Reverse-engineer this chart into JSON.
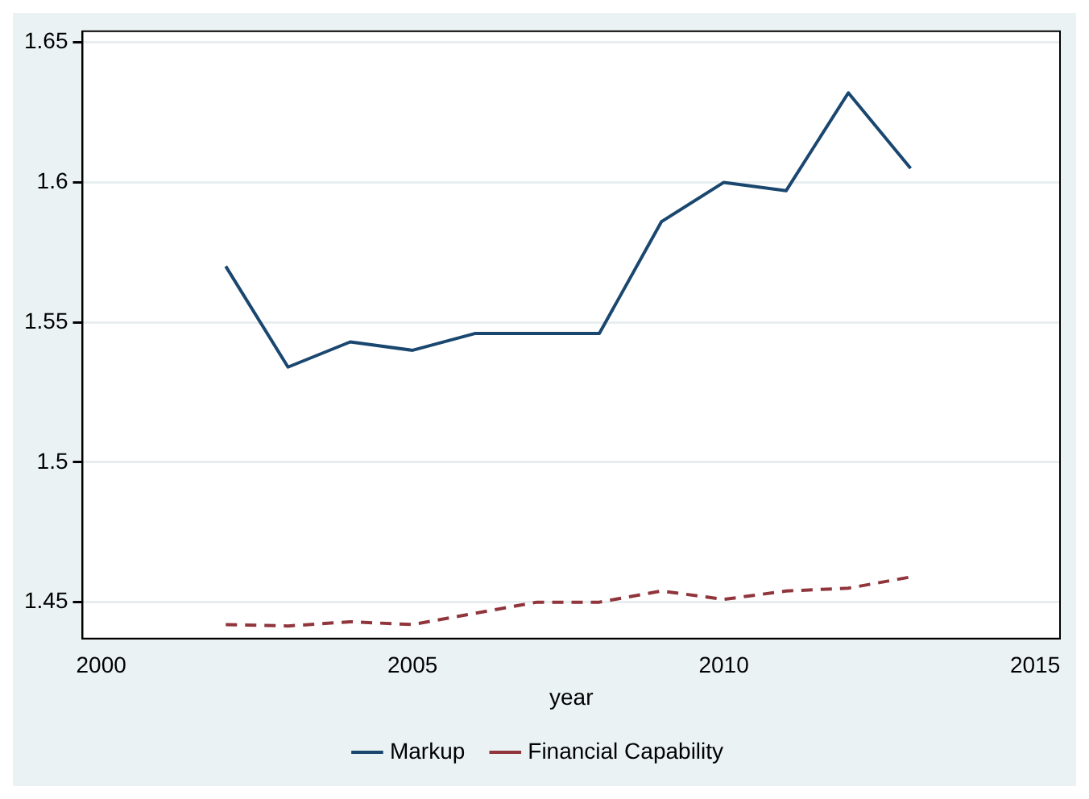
{
  "chart_data": {
    "type": "line",
    "xlabel": "year",
    "x": [
      2002,
      2003,
      2004,
      2005,
      2006,
      2007,
      2008,
      2009,
      2010,
      2011,
      2012,
      2013
    ],
    "series": [
      {
        "name": "Markup",
        "color": "#1a476f",
        "line_style": "solid",
        "values": [
          1.57,
          1.534,
          1.543,
          1.54,
          1.546,
          1.546,
          1.546,
          1.586,
          1.6,
          1.597,
          1.632,
          1.605
        ]
      },
      {
        "name": "Financial Capability",
        "color": "#90353b",
        "line_style": "dashed",
        "values": [
          1.442,
          1.4415,
          1.443,
          1.442,
          1.446,
          1.45,
          1.45,
          1.454,
          1.451,
          1.454,
          1.455,
          1.459
        ]
      }
    ],
    "xlim": [
      1999.7,
      2015.4
    ],
    "xticks": [
      2000,
      2005,
      2010,
      2015
    ],
    "ylim": [
      1.437,
      1.654
    ],
    "yticks": [
      1.45,
      1.5,
      1.55,
      1.6,
      1.65
    ],
    "grid": "y",
    "legend": "bottom",
    "marker": "none"
  }
}
